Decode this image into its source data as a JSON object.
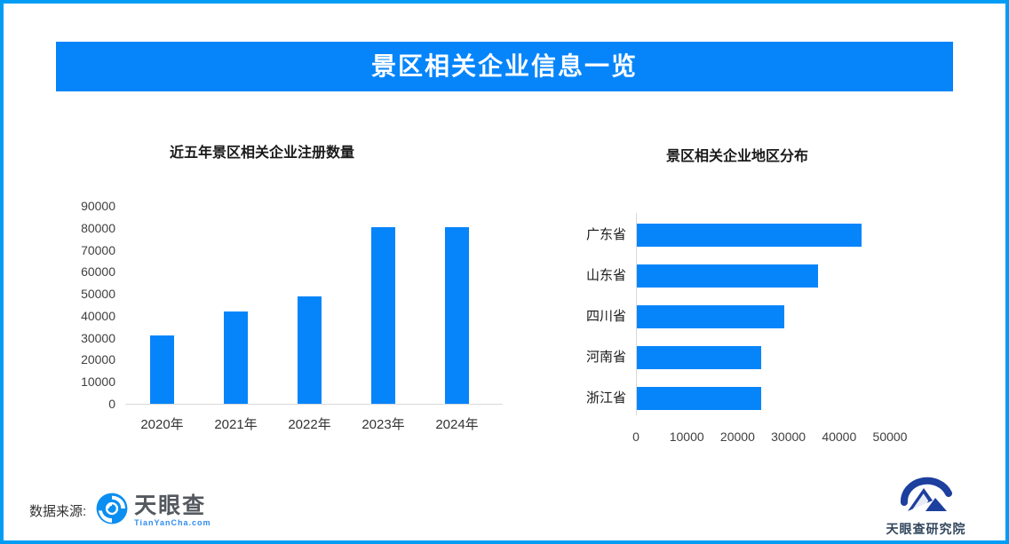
{
  "page": {
    "banner_title": "景区相关企业信息一览",
    "source_label": "数据来源:",
    "colors": {
      "accent": "#0685fb",
      "border": "#019df5",
      "axis_line": "#d9d9d9",
      "tick_text": "#404040",
      "title_text": "#1a1a1a"
    }
  },
  "logos": {
    "tianyancha": {
      "title": "天眼查",
      "subtitle": "TianYanCha.com"
    },
    "research_institute": {
      "title": "天眼查研究院"
    }
  },
  "chart_data": [
    {
      "type": "bar",
      "orientation": "vertical",
      "title": "近五年景区相关企业注册数量",
      "categories": [
        "2020年",
        "2021年",
        "2022年",
        "2023年",
        "2024年"
      ],
      "values": [
        31000,
        42000,
        49000,
        80500,
        80300
      ],
      "xlabel": "",
      "ylabel": "",
      "ylim": [
        0,
        90000
      ],
      "ytick_step": 10000,
      "grid": false,
      "legend": "none",
      "bar_color": "#0685fb"
    },
    {
      "type": "bar",
      "orientation": "horizontal",
      "title": "景区相关企业地区分布",
      "categories": [
        "广东省",
        "山东省",
        "四川省",
        "河南省",
        "浙江省"
      ],
      "values": [
        44300,
        35700,
        29000,
        24400,
        24400
      ],
      "xlabel": "",
      "ylabel": "",
      "xlim": [
        0,
        50000
      ],
      "xtick_step": 10000,
      "grid": false,
      "legend": "none",
      "bar_color": "#0685fb"
    }
  ]
}
